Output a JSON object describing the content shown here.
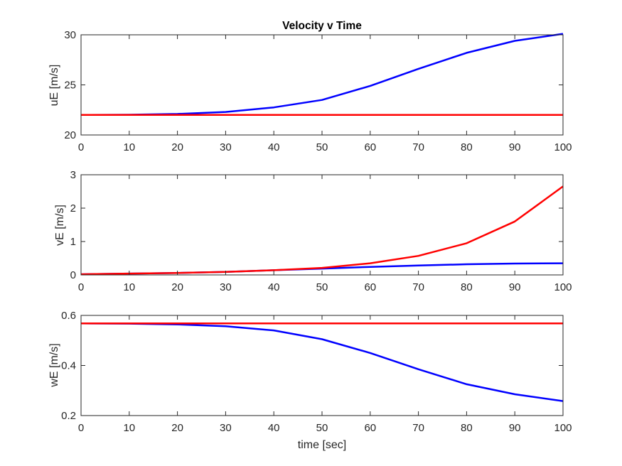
{
  "chart_data": [
    {
      "type": "line",
      "title": "Velocity v Time",
      "xlabel": "",
      "ylabel": "uE [m/s]",
      "xlim": [
        0,
        100
      ],
      "ylim": [
        20,
        30
      ],
      "xticks": [
        "0",
        "10",
        "20",
        "30",
        "40",
        "50",
        "60",
        "70",
        "80",
        "90",
        "100"
      ],
      "yticks": [
        "20",
        "25",
        "30"
      ],
      "grid": false,
      "x": [
        0,
        10,
        20,
        30,
        40,
        50,
        60,
        70,
        80,
        90,
        100
      ],
      "series": [
        {
          "color": "#0000ff",
          "values": [
            22.0,
            22.02,
            22.1,
            22.3,
            22.75,
            23.5,
            24.9,
            26.6,
            28.2,
            29.4,
            30.1
          ]
        },
        {
          "color": "#ff0000",
          "values": [
            22.0,
            22.0,
            22.0,
            22.0,
            22.0,
            22.0,
            22.0,
            22.0,
            22.0,
            22.0,
            22.0
          ]
        }
      ]
    },
    {
      "type": "line",
      "title": "",
      "xlabel": "",
      "ylabel": "vE [m/s]",
      "xlim": [
        0,
        100
      ],
      "ylim": [
        0,
        3
      ],
      "xticks": [
        "0",
        "10",
        "20",
        "30",
        "40",
        "50",
        "60",
        "70",
        "80",
        "90",
        "100"
      ],
      "yticks": [
        "0",
        "1",
        "2",
        "3"
      ],
      "grid": false,
      "x": [
        0,
        10,
        20,
        30,
        40,
        50,
        60,
        70,
        80,
        90,
        100
      ],
      "series": [
        {
          "color": "#0000ff",
          "values": [
            0.02,
            0.04,
            0.06,
            0.09,
            0.14,
            0.19,
            0.24,
            0.28,
            0.32,
            0.34,
            0.35
          ]
        },
        {
          "color": "#ff0000",
          "values": [
            0.02,
            0.04,
            0.06,
            0.09,
            0.14,
            0.21,
            0.35,
            0.57,
            0.95,
            1.6,
            2.65
          ]
        }
      ]
    },
    {
      "type": "line",
      "title": "",
      "xlabel": "time [sec]",
      "ylabel": "wE [m/s]",
      "xlim": [
        0,
        100
      ],
      "ylim": [
        0.2,
        0.6
      ],
      "xticks": [
        "0",
        "10",
        "20",
        "30",
        "40",
        "50",
        "60",
        "70",
        "80",
        "90",
        "100"
      ],
      "yticks": [
        "0.2",
        "0.4",
        "0.6"
      ],
      "grid": false,
      "x": [
        0,
        10,
        20,
        30,
        40,
        50,
        60,
        70,
        80,
        90,
        100
      ],
      "series": [
        {
          "color": "#0000ff",
          "values": [
            0.568,
            0.567,
            0.564,
            0.557,
            0.54,
            0.505,
            0.45,
            0.385,
            0.325,
            0.285,
            0.258
          ]
        },
        {
          "color": "#ff0000",
          "values": [
            0.568,
            0.568,
            0.568,
            0.568,
            0.568,
            0.568,
            0.568,
            0.568,
            0.568,
            0.568,
            0.568
          ]
        }
      ]
    }
  ]
}
